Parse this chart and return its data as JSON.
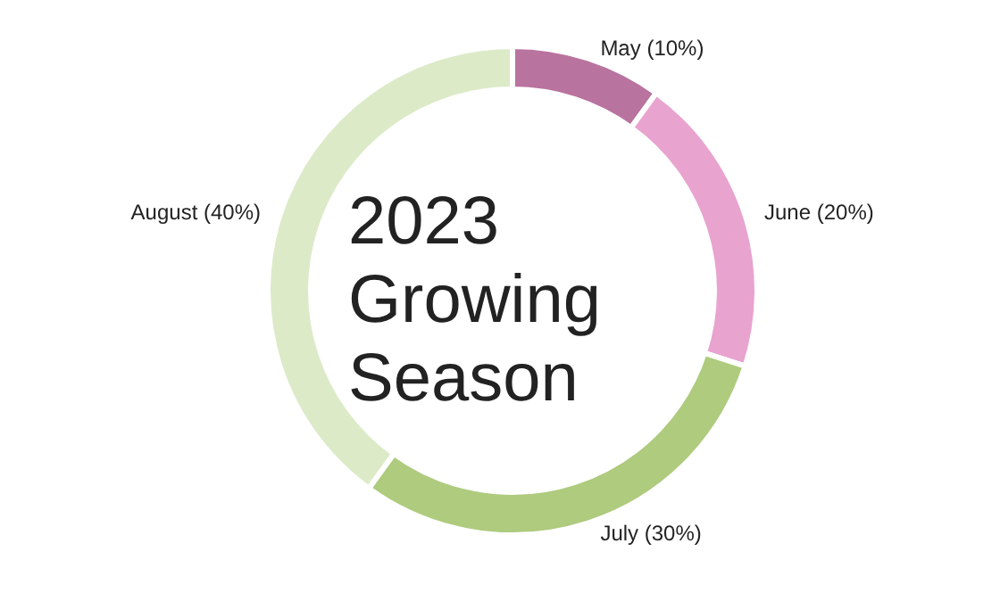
{
  "chart_data": {
    "type": "donut",
    "title": "2023 Growing Season",
    "categories": [
      "May",
      "June",
      "July",
      "August"
    ],
    "values": [
      10,
      20,
      30,
      40
    ],
    "colors": [
      "#b9739f",
      "#e8a3cf",
      "#aecb7e",
      "#dceac8"
    ],
    "value_labels": [
      "(10%)",
      "(20%)",
      "(30%)",
      "(40%)"
    ],
    "legend": false
  }
}
